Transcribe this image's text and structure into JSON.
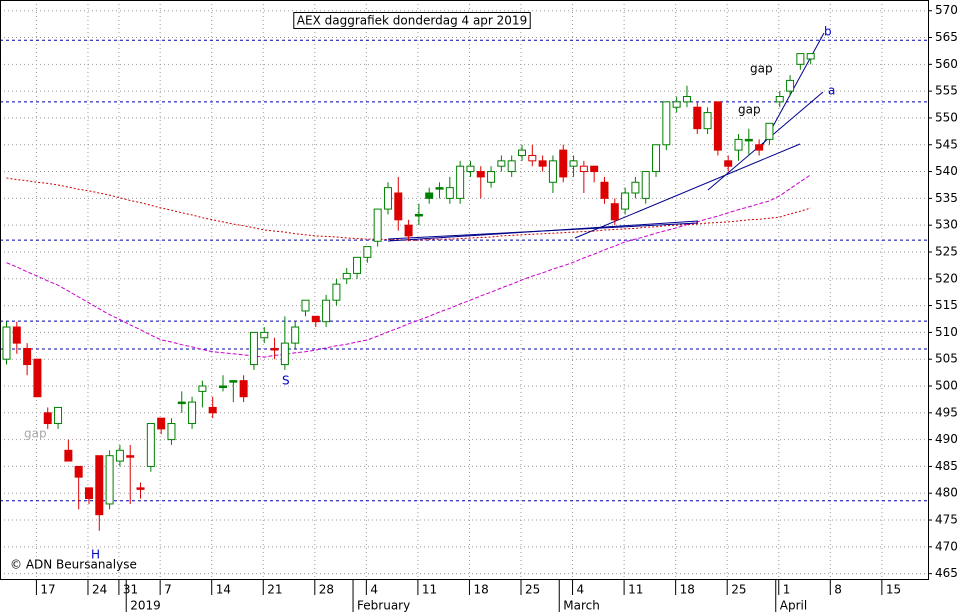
{
  "chart_data": {
    "type": "candlestick",
    "title": "AEX daggrafiek donderdag 4 apr 2019",
    "copyright": "© ADN Beursanalyse",
    "categories": [
      null,
      null,
      null,
      "17",
      null,
      null,
      null,
      null,
      "24",
      null,
      null,
      "31",
      null,
      null,
      null,
      "7",
      null,
      null,
      null,
      null,
      "14",
      null,
      null,
      null,
      null,
      "21",
      null,
      null,
      null,
      null,
      "28",
      null,
      null,
      null,
      null,
      "4",
      null,
      null,
      null,
      null,
      "11",
      null,
      null,
      null,
      null,
      "18",
      null,
      null,
      null,
      null,
      "25",
      null,
      null,
      null,
      null,
      "4",
      null,
      null,
      null,
      null,
      "11",
      null,
      null,
      null,
      null,
      "18",
      null,
      null,
      null,
      null,
      "25",
      null,
      null,
      null,
      null,
      "1",
      null,
      null,
      null,
      null,
      "8",
      null,
      null,
      null,
      null,
      "15",
      null,
      null,
      null
    ],
    "months": [
      null,
      null,
      null,
      null,
      null,
      null,
      null,
      null,
      null,
      null,
      null,
      null,
      "2019",
      null,
      null,
      null,
      null,
      null,
      null,
      null,
      null,
      null,
      null,
      null,
      null,
      null,
      null,
      null,
      null,
      null,
      null,
      null,
      null,
      null,
      "February",
      null,
      null,
      null,
      null,
      null,
      null,
      null,
      null,
      null,
      null,
      null,
      null,
      null,
      null,
      null,
      null,
      null,
      null,
      null,
      "March",
      null,
      null,
      null,
      null,
      null,
      null,
      null,
      null,
      null,
      null,
      null,
      null,
      null,
      null,
      null,
      null,
      null,
      null,
      null,
      null,
      "April",
      null,
      null,
      null,
      null,
      null,
      null,
      null,
      null,
      null,
      null,
      null,
      null,
      null
    ],
    "open": [
      505,
      511,
      507,
      505,
      495,
      493,
      488,
      485,
      481,
      487,
      478,
      486,
      487,
      481,
      485,
      494,
      490,
      497,
      493,
      499,
      496,
      500,
      501,
      501,
      504,
      509,
      507,
      504,
      508,
      514,
      513,
      512,
      516,
      520,
      521,
      524,
      527,
      533,
      536,
      530,
      532,
      536,
      537,
      535,
      535,
      540,
      540,
      538,
      541,
      540,
      543,
      542,
      542,
      538,
      544,
      541,
      540,
      541,
      538,
      534,
      533,
      536,
      535,
      540,
      545,
      552,
      553,
      552,
      548,
      553,
      542,
      544,
      546,
      545,
      546,
      553,
      555,
      560,
      561,
      null,
      null,
      null,
      null,
      null,
      null,
      null,
      null,
      null,
      null
    ],
    "high": [
      512,
      512,
      508,
      505,
      496,
      496,
      490,
      485,
      481,
      487,
      488,
      489,
      489,
      482,
      493,
      494,
      494,
      499,
      498,
      501,
      498,
      502,
      501,
      502,
      510,
      511,
      509,
      513,
      512,
      516,
      513,
      517,
      520,
      522,
      524,
      526,
      533,
      538,
      539,
      531,
      534,
      537,
      538,
      539,
      542,
      542,
      541,
      541,
      543,
      543,
      545,
      545,
      543,
      543,
      545,
      543,
      542,
      541,
      539,
      535,
      537,
      539,
      540,
      545,
      553,
      554,
      556,
      553,
      552,
      553,
      543,
      547,
      548,
      546,
      549,
      555,
      558,
      562,
      562,
      null,
      null,
      null,
      null,
      null,
      null,
      null,
      null,
      null,
      null
    ],
    "low": [
      504,
      506,
      502,
      498,
      492,
      492,
      486,
      477,
      478,
      473,
      477,
      485,
      478,
      479,
      484,
      491,
      489,
      495,
      492,
      496,
      494,
      499,
      497,
      497,
      503,
      508,
      505,
      503,
      507,
      513,
      511,
      511,
      515,
      519,
      520,
      523,
      526,
      532,
      529,
      527,
      530,
      534,
      535,
      534,
      534,
      539,
      535,
      537,
      540,
      539,
      542,
      541,
      540,
      536,
      538,
      539,
      536,
      538,
      534,
      530,
      532,
      535,
      534,
      539,
      544,
      551,
      552,
      547,
      547,
      543,
      540,
      542,
      543,
      543,
      545,
      552,
      554,
      559,
      560,
      null,
      null,
      null,
      null,
      null,
      null,
      null,
      null,
      null,
      null
    ],
    "close": [
      511,
      508,
      504,
      498,
      493,
      496,
      486,
      483,
      479,
      476,
      487,
      488,
      487,
      481,
      493,
      492,
      493,
      497,
      497,
      500,
      495,
      500,
      501,
      498,
      510,
      510,
      507,
      508,
      511,
      516,
      512,
      516,
      519,
      521,
      524,
      526,
      533,
      537,
      531,
      528,
      532,
      535,
      537,
      537,
      541,
      541,
      539,
      540,
      542,
      542,
      544,
      543,
      541,
      542,
      539,
      542,
      541,
      540,
      535,
      531,
      536,
      538,
      540,
      545,
      553,
      553,
      554,
      548,
      551,
      544,
      541,
      546,
      546,
      544,
      549,
      554,
      557,
      562,
      562,
      null,
      null,
      null,
      null,
      null,
      null,
      null,
      null,
      null,
      null
    ],
    "up_color": "#008000",
    "down_color": "#dd0000",
    "ma": [
      {
        "color": "#cc0000",
        "values": [
          538.8,
          538.5,
          538.3,
          538.0,
          537.8,
          537.5,
          537.1,
          536.7,
          536.4,
          536.0,
          535.6,
          535.1,
          534.6,
          534.2,
          533.7,
          533.2,
          532.8,
          532.3,
          531.9,
          531.4,
          531.0,
          530.6,
          530.2,
          529.9,
          529.5,
          529.1,
          528.9,
          528.7,
          528.4,
          528.2,
          528.0,
          527.9,
          527.8,
          527.6,
          527.5,
          527.4,
          527.4,
          527.3,
          527.3,
          527.2,
          527.2,
          527.3,
          527.4,
          527.4,
          527.5,
          527.6,
          527.7,
          527.8,
          528.0,
          528.1,
          528.2,
          528.3,
          528.4,
          528.5,
          528.6,
          528.7,
          528.8,
          528.9,
          529.1,
          529.2,
          529.3,
          529.4,
          529.6,
          529.7,
          529.9,
          530.0,
          530.1,
          530.2,
          530.4,
          530.5,
          530.6,
          530.8,
          531.0,
          531.1,
          531.3,
          531.5,
          532.1,
          532.6,
          533.2,
          null,
          null,
          null,
          null,
          null,
          null,
          null,
          null,
          null,
          null
        ]
      },
      {
        "color": "#cc00cc",
        "values": [
          523.0,
          522.2,
          521.3,
          520.5,
          519.6,
          518.8,
          517.7,
          516.6,
          515.5,
          514.4,
          513.3,
          512.4,
          511.4,
          510.5,
          509.5,
          508.6,
          508.2,
          507.7,
          507.3,
          506.8,
          506.4,
          506.2,
          506.0,
          505.8,
          505.6,
          505.4,
          505.7,
          505.9,
          506.2,
          506.4,
          506.7,
          507.1,
          507.5,
          507.8,
          508.2,
          508.6,
          509.3,
          510.1,
          510.8,
          511.6,
          512.3,
          513.0,
          513.8,
          514.5,
          515.3,
          516.0,
          516.8,
          517.5,
          518.3,
          519.0,
          519.8,
          520.5,
          521.1,
          521.8,
          522.4,
          523.1,
          523.9,
          524.6,
          525.4,
          526.1,
          526.9,
          527.4,
          527.9,
          528.5,
          529.0,
          529.5,
          530.1,
          530.6,
          531.2,
          531.7,
          532.3,
          532.9,
          533.4,
          534.0,
          534.5,
          535.5,
          536.8,
          538.1,
          539.4,
          null,
          null,
          null,
          null,
          null,
          null,
          null,
          null,
          null,
          null
        ]
      }
    ],
    "levels": [
      564.5,
      553.0,
      527.2,
      512.1,
      506.9,
      478.6
    ],
    "level_color": "#0000aa",
    "annotations": [
      {
        "text": "gap"
      },
      {
        "text": "gap"
      },
      {
        "text": "gap"
      },
      {
        "text": "H"
      },
      {
        "text": "S"
      },
      {
        "text": "a"
      },
      {
        "text": "b"
      }
    ],
    "ylim": [
      464,
      572
    ],
    "yticks": [
      465,
      470,
      475,
      480,
      485,
      490,
      495,
      500,
      505,
      510,
      515,
      520,
      525,
      530,
      535,
      540,
      545,
      550,
      555,
      560,
      565,
      570
    ],
    "grid": true
  }
}
